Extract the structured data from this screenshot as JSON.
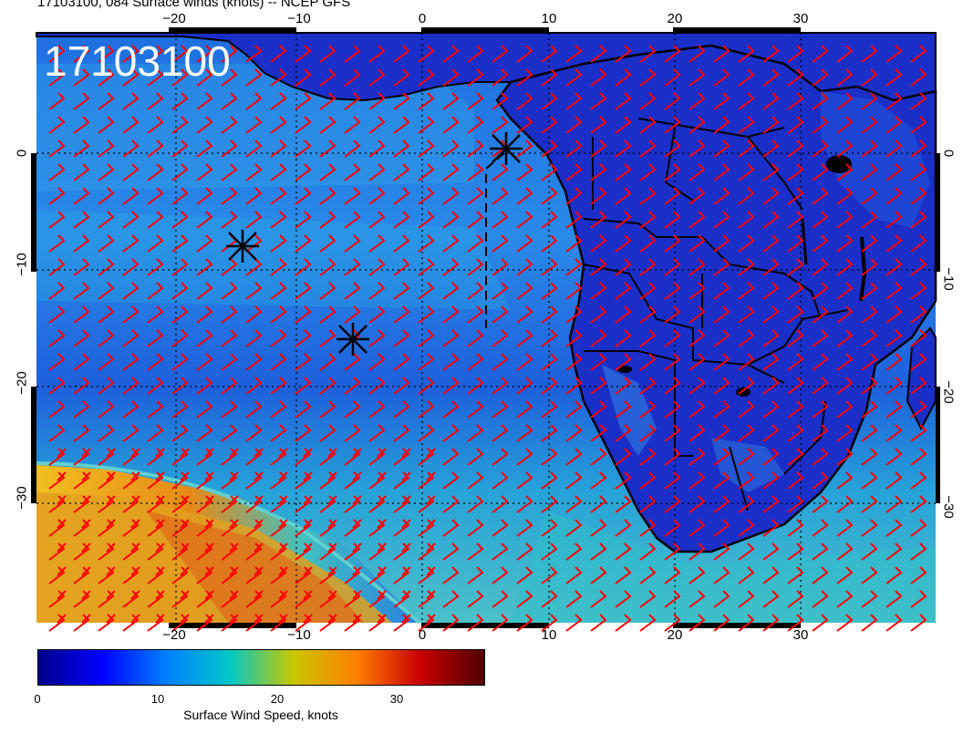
{
  "title": "17103100, 084 Surface winds (knots) -- NCEP GFS",
  "stamp": "17103100",
  "map": {
    "projection": "lon-lat",
    "lon_range": [
      -31,
      41
    ],
    "lat_range": [
      -40,
      9
    ],
    "lon_ticks": [
      "−20",
      "−10",
      "0",
      "10",
      "20",
      "30"
    ],
    "lat_ticks": [
      "0",
      "−10",
      "−20",
      "−30"
    ],
    "gridlines": "dotted",
    "wind_barb_color": "#ff0000",
    "coastline_color": "#000000",
    "markers": [
      {
        "type": "asterisk",
        "lon": -14.8,
        "lat": -7.9
      },
      {
        "type": "asterisk",
        "lon": -5.7,
        "lat": -15.9
      },
      {
        "type": "asterisk",
        "lon": 6.7,
        "lat": 0.3
      }
    ]
  },
  "colorbar": {
    "label": "Surface Wind Speed, knots",
    "ticks": [
      "0",
      "10",
      "20",
      "30"
    ],
    "range": [
      0,
      37
    ],
    "colors": [
      "#00008b",
      "#0000ff",
      "#007fff",
      "#00c8c8",
      "#c8c800",
      "#ff7f00",
      "#c80000",
      "#500000"
    ]
  }
}
